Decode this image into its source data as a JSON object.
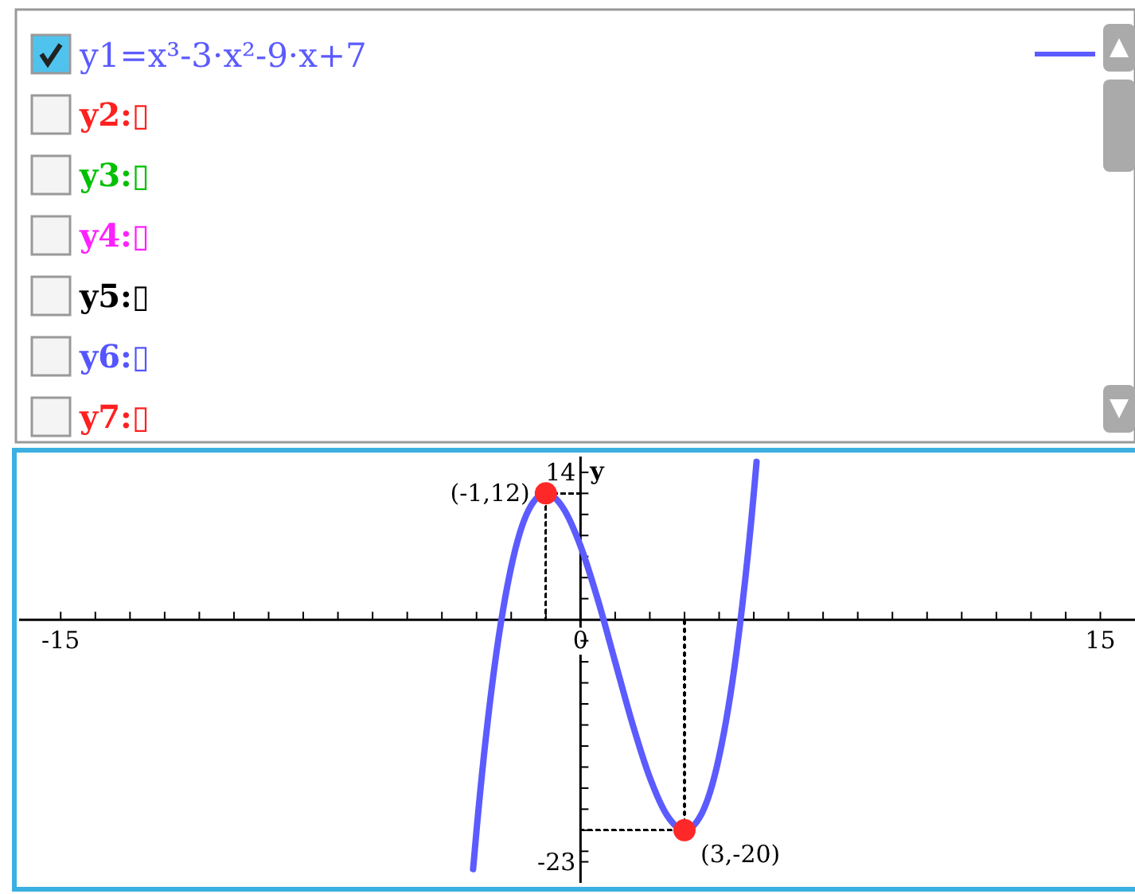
{
  "chart_data": {
    "type": "line",
    "ylabel": "y",
    "xlim": [
      -16.2,
      16
    ],
    "ylim": [
      -25,
      15.5
    ],
    "xticks": [
      {
        "value": -15,
        "label": "-15"
      },
      {
        "value": -14,
        "label": null
      },
      {
        "value": -13,
        "label": null
      },
      {
        "value": -12,
        "label": null
      },
      {
        "value": -11,
        "label": null
      },
      {
        "value": -10,
        "label": null
      },
      {
        "value": -9,
        "label": null
      },
      {
        "value": -8,
        "label": null
      },
      {
        "value": -7,
        "label": null
      },
      {
        "value": -6,
        "label": null
      },
      {
        "value": -5,
        "label": null
      },
      {
        "value": -4,
        "label": null
      },
      {
        "value": -3,
        "label": null
      },
      {
        "value": -2,
        "label": null
      },
      {
        "value": -1,
        "label": null
      },
      {
        "value": 0,
        "label": "0"
      },
      {
        "value": 1,
        "label": null
      },
      {
        "value": 2,
        "label": null
      },
      {
        "value": 3,
        "label": null
      },
      {
        "value": 4,
        "label": null
      },
      {
        "value": 5,
        "label": null
      },
      {
        "value": 6,
        "label": null
      },
      {
        "value": 7,
        "label": null
      },
      {
        "value": 8,
        "label": null
      },
      {
        "value": 9,
        "label": null
      },
      {
        "value": 10,
        "label": null
      },
      {
        "value": 11,
        "label": null
      },
      {
        "value": 12,
        "label": null
      },
      {
        "value": 13,
        "label": null
      },
      {
        "value": 14,
        "label": null
      },
      {
        "value": 15,
        "label": "15"
      }
    ],
    "yticks": [
      {
        "value": 14,
        "label": "14"
      },
      {
        "value": 12,
        "label": null
      },
      {
        "value": 10,
        "label": null
      },
      {
        "value": 8,
        "label": null
      },
      {
        "value": 6,
        "label": null
      },
      {
        "value": 4,
        "label": null
      },
      {
        "value": 2,
        "label": null
      },
      {
        "value": -2,
        "label": null
      },
      {
        "value": -4,
        "label": null
      },
      {
        "value": -6,
        "label": null
      },
      {
        "value": -8,
        "label": null
      },
      {
        "value": -10,
        "label": null
      },
      {
        "value": -12,
        "label": null
      },
      {
        "value": -14,
        "label": null
      },
      {
        "value": -16,
        "label": null
      },
      {
        "value": -18,
        "label": null
      },
      {
        "value": -20,
        "label": null
      },
      {
        "value": -22,
        "label": null
      },
      {
        "value": -23,
        "label": "-23"
      }
    ],
    "grid": false,
    "legend": "top",
    "series": [
      {
        "name": "y1=x³-3·x²-9·x+7",
        "color": "#5b5bff",
        "marker": "none",
        "line_style": "solid",
        "x": [
          -3.1,
          -3,
          -2.5,
          -2,
          -1.5,
          -1,
          -0.5,
          0,
          0.5,
          1,
          1.5,
          2,
          2.5,
          3,
          3.5,
          4,
          4.5,
          5,
          5.08
        ],
        "values": [
          -23.7,
          -20,
          -4.9,
          5,
          10.4,
          12,
          10.6,
          7,
          1.9,
          -4,
          -9.9,
          -15,
          -18.6,
          -20,
          -18.4,
          -13,
          -3.1,
          12,
          15
        ]
      },
      {
        "type": "line",
        "color": "#000000",
        "marker": "none",
        "line_style": "dotted",
        "x": [
          0,
          -1,
          -1
        ],
        "values": [
          12,
          12,
          0
        ]
      },
      {
        "type": "line",
        "color": "#000000",
        "marker": "none",
        "line_style": "dotted",
        "x": [
          0,
          3,
          3
        ],
        "values": [
          -20,
          -20,
          0
        ]
      },
      {
        "type": "scatter",
        "color": "#ff2828",
        "marker": "circle",
        "x": [
          -1,
          3
        ],
        "values": [
          12,
          -20
        ]
      }
    ],
    "annotations": [
      {
        "text": "(-1,12)",
        "x": -1,
        "y": 12
      },
      {
        "text": "(3,-20)",
        "x": 3,
        "y": -20
      },
      "y2:▯",
      "y3:▯",
      "y4:▯",
      "y5:▯",
      "y6:▯",
      "y7:▯"
    ]
  }
}
